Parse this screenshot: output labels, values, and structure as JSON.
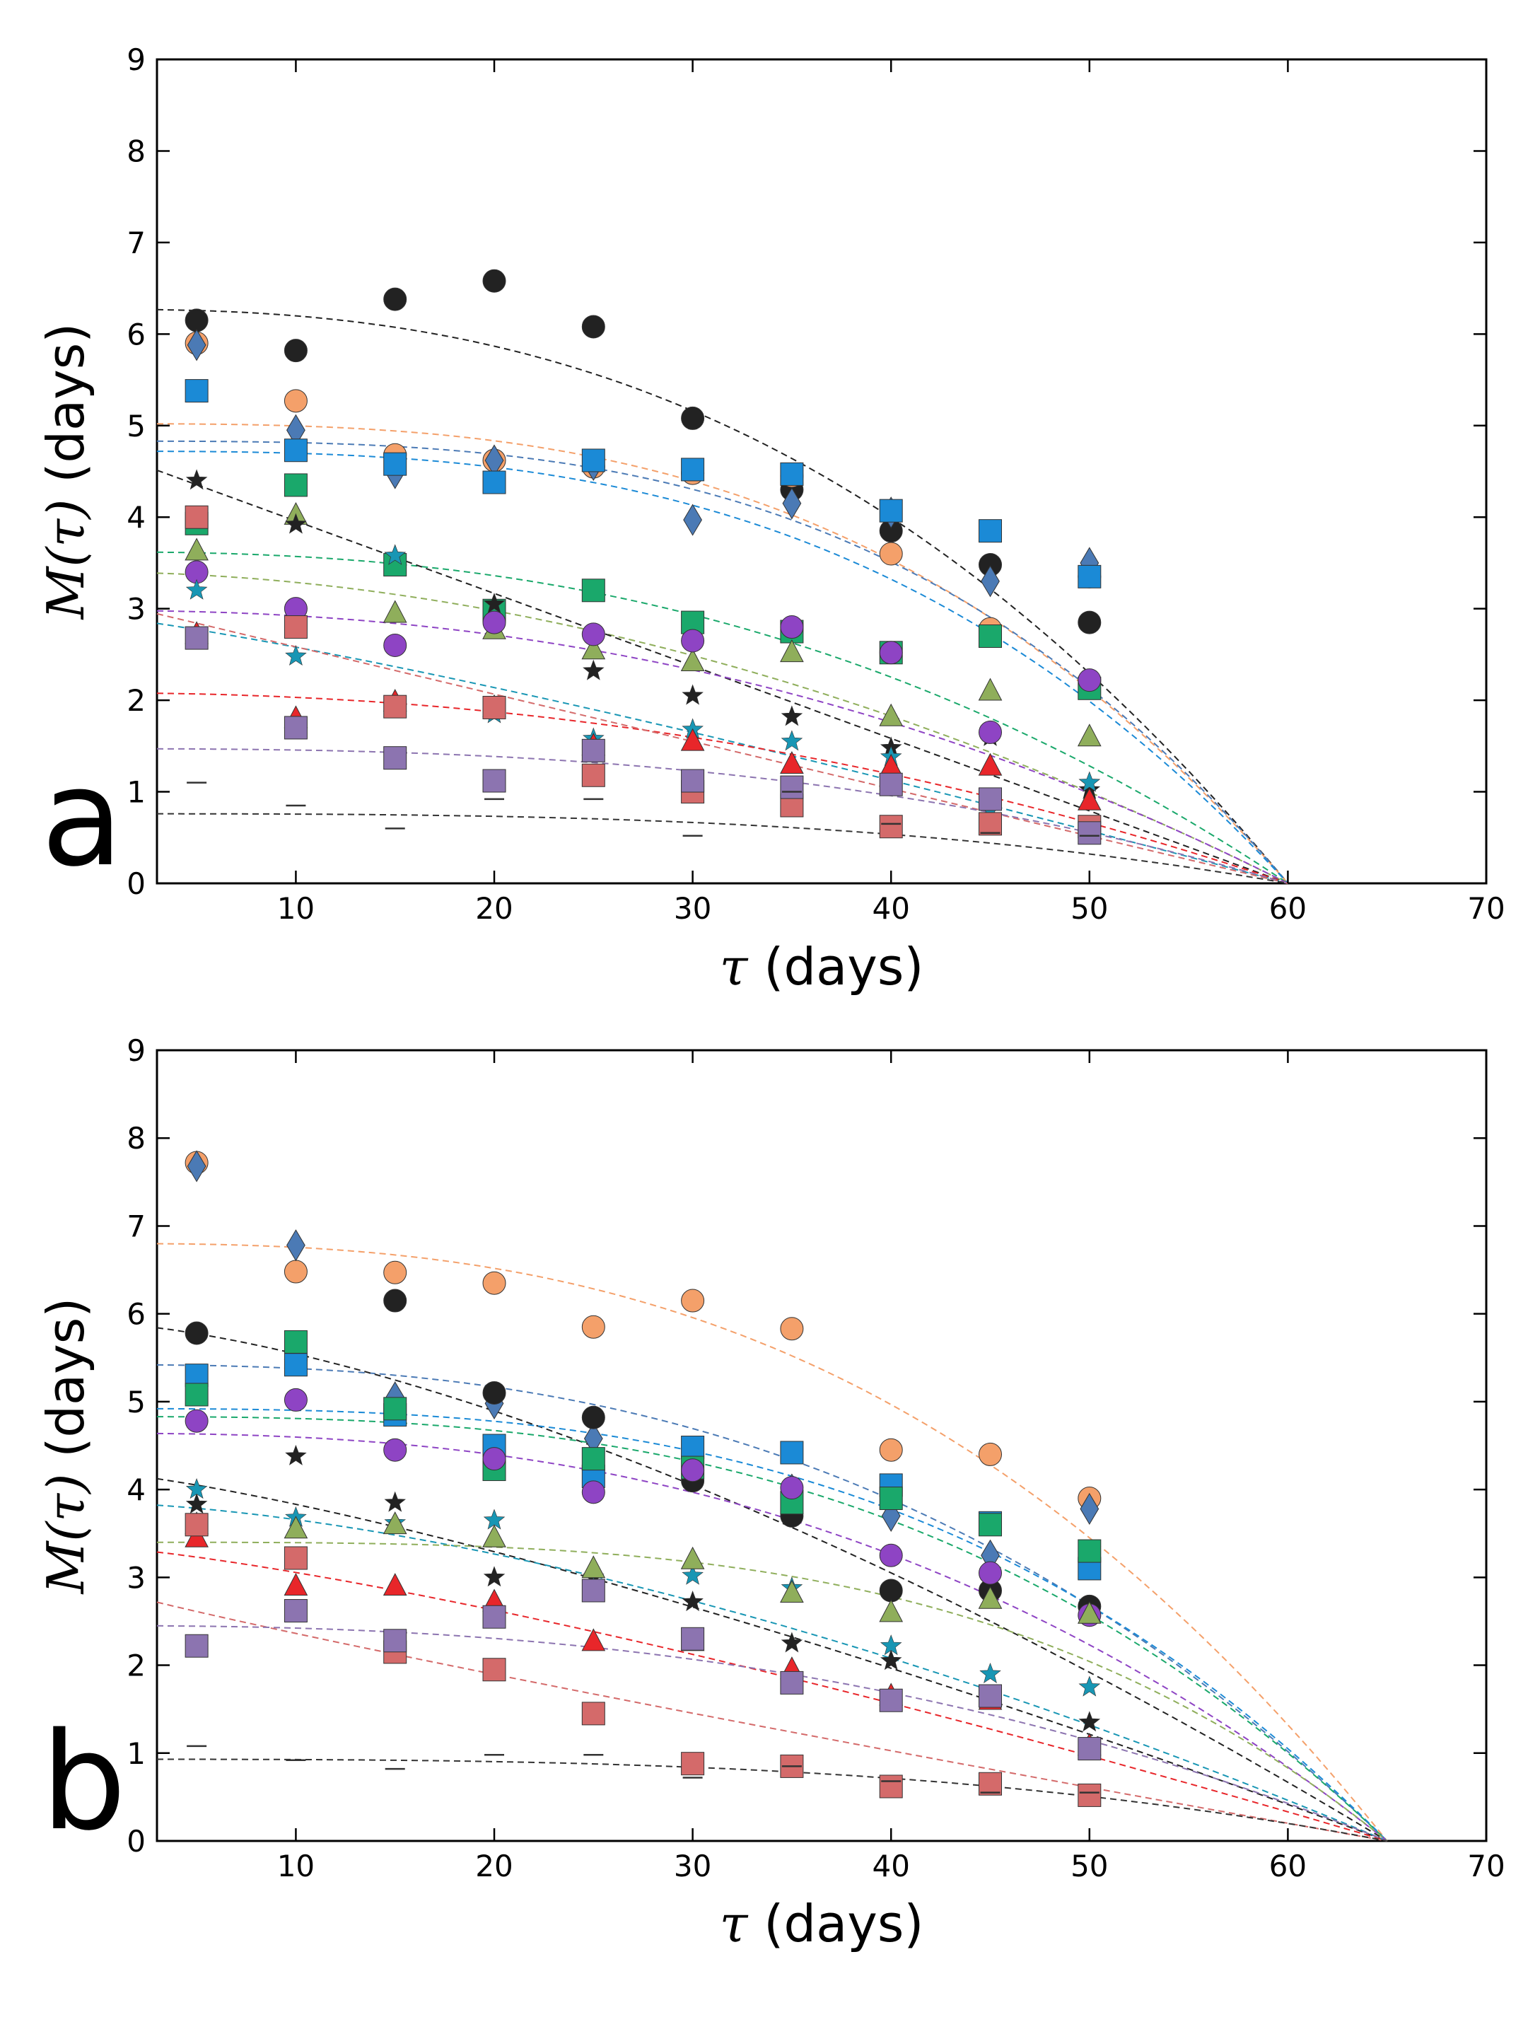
{
  "chart_data": [
    {
      "type": "scatter",
      "panel_label": "a",
      "xlabel_symbol": "τ",
      "xlabel_unit": " (days)",
      "ylabel_symbol": "M(τ)",
      "ylabel_unit": " (days)",
      "xlim": [
        3,
        70
      ],
      "ylim": [
        0,
        9
      ],
      "xticks": [
        "10",
        "20",
        "30",
        "40",
        "50",
        "60",
        "70"
      ],
      "yticks": [
        "0",
        "1",
        "2",
        "3",
        "4",
        "5",
        "6",
        "7",
        "8",
        "9"
      ],
      "x": [
        5,
        10,
        15,
        20,
        25,
        30,
        35,
        40,
        45,
        50
      ],
      "fit_end": 60,
      "series": [
        {
          "marker": "circle",
          "color": "#222222",
          "values": [
            6.15,
            5.82,
            6.38,
            6.58,
            6.08,
            5.08,
            4.3,
            3.85,
            3.48,
            2.85
          ],
          "fit": {
            "a": 6.27,
            "p": 2.5
          }
        },
        {
          "marker": "circle",
          "color": "#f4a06a",
          "values": [
            5.9,
            5.27,
            4.68,
            4.62,
            4.55,
            4.48,
            4.45,
            3.6,
            2.78,
            3.35
          ],
          "fit": {
            "a": 5.02,
            "p": 3.0
          }
        },
        {
          "marker": "diamond",
          "color": "#4b7ab5",
          "values": [
            5.88,
            4.95,
            4.48,
            4.62,
            4.57,
            3.97,
            4.15,
            4.05,
            3.3,
            3.5
          ],
          "fit": {
            "a": 4.83,
            "p": 3.2
          }
        },
        {
          "marker": "square",
          "color": "#1b8ad6",
          "values": [
            5.38,
            4.73,
            4.58,
            4.38,
            4.62,
            4.52,
            4.47,
            4.07,
            3.85,
            3.35
          ],
          "fit": {
            "a": 4.72,
            "p": 3.0
          }
        },
        {
          "marker": "square",
          "color": "#1aa86b",
          "values": [
            3.93,
            4.35,
            3.48,
            2.98,
            3.2,
            2.85,
            2.75,
            2.52,
            2.7,
            2.13
          ],
          "fit": {
            "a": 3.62,
            "p": 2.4
          }
        },
        {
          "marker": "triangle",
          "color": "#8fae5b",
          "values": [
            3.63,
            4.02,
            2.95,
            2.77,
            2.55,
            2.42,
            2.52,
            1.82,
            2.1,
            1.6
          ],
          "fit": {
            "a": 3.4,
            "p": 1.9
          }
        },
        {
          "marker": "star",
          "color": "#222222",
          "values": [
            4.4,
            3.92,
            3.58,
            3.05,
            2.32,
            2.05,
            1.82,
            1.48,
            1.6,
            1.02
          ],
          "fit": {
            "a": 4.75,
            "p": 1.0
          }
        },
        {
          "marker": "circle",
          "color": "#8e44c4",
          "values": [
            3.4,
            3.0,
            2.6,
            2.85,
            2.72,
            2.65,
            2.8,
            2.52,
            1.65,
            2.22
          ],
          "fit": {
            "a": 2.98,
            "p": 2.2
          }
        },
        {
          "marker": "star",
          "color": "#1896b4",
          "values": [
            3.2,
            2.48,
            3.58,
            1.85,
            1.58,
            1.68,
            1.55,
            1.38,
            0.8,
            1.1
          ],
          "fit": {
            "a": 2.92,
            "p": 1.2
          }
        },
        {
          "marker": "triangle",
          "color": "#e8262a",
          "values": [
            2.72,
            1.8,
            1.98,
            1.92,
            1.5,
            1.55,
            1.3,
            1.27,
            1.28,
            0.9
          ],
          "fit": {
            "a": 2.08,
            "p": 2.1
          }
        },
        {
          "marker": "square",
          "color": "#d46a6a",
          "values": [
            4.0,
            2.8,
            1.93,
            1.92,
            1.18,
            1.0,
            0.85,
            0.62,
            0.65,
            0.62
          ],
          "fit": {
            "a": 3.1,
            "p": 1.0
          }
        },
        {
          "marker": "square",
          "color": "#8c74b0",
          "values": [
            2.68,
            1.7,
            1.37,
            1.12,
            1.45,
            1.12,
            1.05,
            1.08,
            0.92,
            0.55
          ],
          "fit": {
            "a": 1.47,
            "p": 2.6
          }
        },
        {
          "marker": "dash",
          "color": "#333333",
          "values": [
            1.1,
            0.85,
            0.6,
            0.92,
            0.92,
            0.52,
            1.0,
            0.65,
            0.55,
            0.52
          ],
          "fit": {
            "a": 0.76,
            "p": 3.0
          }
        }
      ]
    },
    {
      "type": "scatter",
      "panel_label": "b",
      "xlabel_symbol": "τ",
      "xlabel_unit": " (days)",
      "ylabel_symbol": "M(τ)",
      "ylabel_unit": " (days)",
      "xlim": [
        3,
        70
      ],
      "ylim": [
        0,
        9
      ],
      "xticks": [
        "10",
        "20",
        "30",
        "40",
        "50",
        "60",
        "70"
      ],
      "yticks": [
        "0",
        "1",
        "2",
        "3",
        "4",
        "5",
        "6",
        "7",
        "8",
        "9"
      ],
      "x": [
        5,
        10,
        15,
        20,
        25,
        30,
        35,
        40,
        45,
        50
      ],
      "fit_end": 65,
      "series": [
        {
          "marker": "circle",
          "color": "#f4a06a",
          "values": [
            7.72,
            6.48,
            6.47,
            6.35,
            5.85,
            6.15,
            5.83,
            4.45,
            4.4,
            3.9
          ],
          "fit": {
            "a": 6.8,
            "p": 2.7
          }
        },
        {
          "marker": "diamond",
          "color": "#4b7ab5",
          "values": [
            7.68,
            6.78,
            5.05,
            4.98,
            4.58,
            4.4,
            4.0,
            3.7,
            3.25,
            3.78
          ],
          "fit": {
            "a": 5.42,
            "p": 2.6
          }
        },
        {
          "marker": "circle",
          "color": "#222222",
          "values": [
            5.78,
            5.48,
            6.15,
            5.1,
            4.82,
            4.1,
            3.7,
            2.85,
            2.85,
            2.67
          ],
          "fit": {
            "a": 5.9,
            "p": 1.5
          }
        },
        {
          "marker": "square",
          "color": "#1b8ad6",
          "values": [
            5.3,
            5.42,
            4.85,
            4.5,
            4.15,
            4.48,
            4.42,
            4.05,
            3.62,
            3.1
          ],
          "fit": {
            "a": 4.92,
            "p": 3.0
          }
        },
        {
          "marker": "square",
          "color": "#1aa86b",
          "values": [
            5.08,
            5.68,
            4.92,
            4.23,
            4.35,
            4.25,
            3.85,
            3.9,
            3.6,
            3.3
          ],
          "fit": {
            "a": 4.83,
            "p": 2.9
          }
        },
        {
          "marker": "circle",
          "color": "#8e44c4",
          "values": [
            4.78,
            5.02,
            4.45,
            4.35,
            3.97,
            4.22,
            4.02,
            3.25,
            3.05,
            2.57
          ],
          "fit": {
            "a": 4.64,
            "p": 2.5
          }
        },
        {
          "marker": "star",
          "color": "#222222",
          "values": [
            3.83,
            4.38,
            3.85,
            3.0,
            3.0,
            2.72,
            2.25,
            2.05,
            1.62,
            1.35
          ],
          "fit": {
            "a": 4.2,
            "p": 1.3
          }
        },
        {
          "marker": "star",
          "color": "#1896b4",
          "values": [
            4.0,
            3.68,
            3.62,
            3.65,
            2.88,
            3.02,
            2.88,
            2.22,
            1.9,
            1.75
          ],
          "fit": {
            "a": 3.85,
            "p": 1.6
          }
        },
        {
          "marker": "triangle",
          "color": "#8fae5b",
          "values": [
            3.6,
            3.55,
            3.6,
            3.45,
            3.1,
            3.2,
            2.82,
            2.6,
            2.75,
            2.58
          ],
          "fit": {
            "a": 3.4,
            "p": 3.5
          }
        },
        {
          "marker": "triangle",
          "color": "#e8262a",
          "values": [
            3.45,
            2.9,
            2.9,
            2.72,
            2.27,
            2.27,
            1.95,
            1.65,
            1.6,
            1.08
          ],
          "fit": {
            "a": 3.35,
            "p": 1.3
          }
        },
        {
          "marker": "square",
          "color": "#d46a6a",
          "values": [
            3.6,
            3.22,
            2.15,
            1.95,
            1.45,
            0.88,
            0.85,
            0.62,
            0.65,
            0.52
          ],
          "fit": {
            "a": 2.9,
            "p": 0.9
          }
        },
        {
          "marker": "square",
          "color": "#8c74b0",
          "values": [
            2.22,
            2.62,
            2.28,
            2.55,
            2.85,
            2.3,
            1.8,
            1.6,
            1.65,
            1.05
          ],
          "fit": {
            "a": 2.45,
            "p": 2.4
          }
        },
        {
          "marker": "dash",
          "color": "#333333",
          "values": [
            1.08,
            0.92,
            0.82,
            0.98,
            0.98,
            0.72,
            0.85,
            0.68,
            0.55,
            0.55
          ],
          "fit": {
            "a": 0.93,
            "p": 3.0
          }
        }
      ]
    }
  ]
}
